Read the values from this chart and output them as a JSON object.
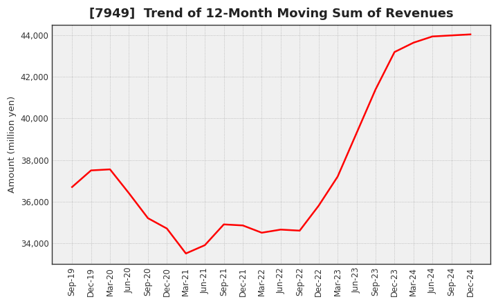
{
  "title": "[7949]  Trend of 12-Month Moving Sum of Revenues",
  "ylabel": "Amount (million yen)",
  "line_color": "#FF0000",
  "background_color": "#FFFFFF",
  "plot_bg_color": "#F0F0F0",
  "grid_color": "#888888",
  "x_labels": [
    "Sep-19",
    "Dec-19",
    "Mar-20",
    "Jun-20",
    "Sep-20",
    "Dec-20",
    "Mar-21",
    "Jun-21",
    "Sep-21",
    "Dec-21",
    "Mar-22",
    "Jun-22",
    "Sep-22",
    "Dec-22",
    "Mar-23",
    "Jun-23",
    "Sep-23",
    "Dec-23",
    "Mar-24",
    "Jun-24",
    "Sep-24",
    "Dec-24"
  ],
  "values": [
    36700,
    37500,
    37550,
    36400,
    35200,
    34700,
    33500,
    33900,
    34900,
    34850,
    34500,
    34650,
    34600,
    35800,
    37200,
    39300,
    41400,
    43200,
    43650,
    43950,
    44000,
    44050
  ],
  "ylim_min": 33000,
  "ylim_max": 44500,
  "yticks": [
    34000,
    36000,
    38000,
    40000,
    42000,
    44000
  ],
  "title_fontsize": 13,
  "tick_fontsize": 8.5,
  "ylabel_fontsize": 9.5,
  "line_width": 1.8
}
